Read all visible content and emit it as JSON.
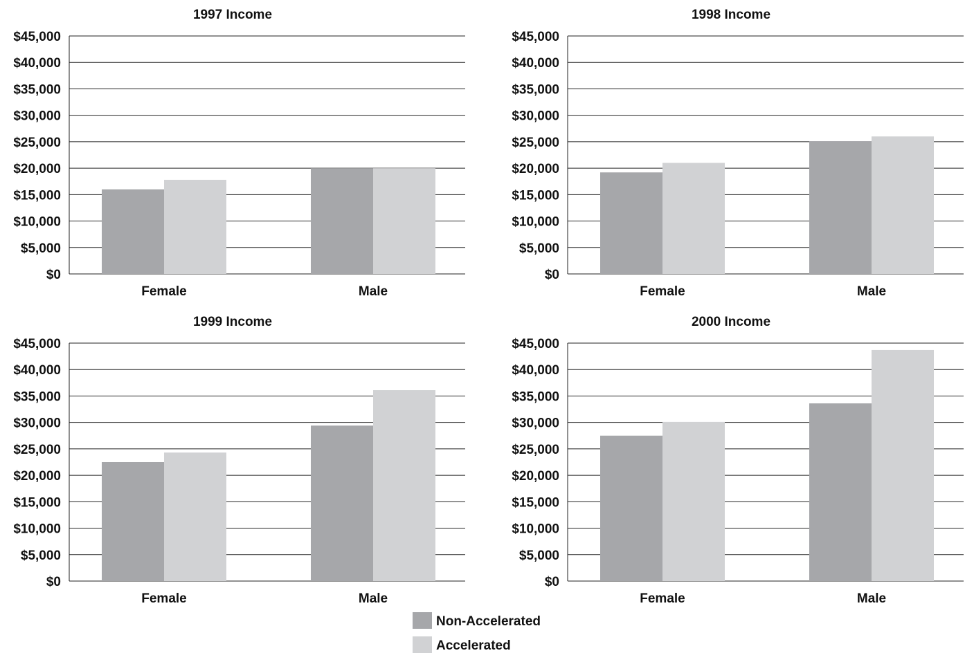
{
  "colors": {
    "non_accelerated": "#a6a7aa",
    "accelerated": "#d1d2d4",
    "gridline": "#222222",
    "text": "#111111"
  },
  "legend": {
    "items": [
      {
        "label": "Non-Accelerated",
        "color": "#a6a7aa"
      },
      {
        "label": "Accelerated",
        "color": "#d1d2d4"
      }
    ]
  },
  "chart_data": [
    {
      "type": "bar",
      "title": "1997 Income",
      "categories": [
        "Female",
        "Male"
      ],
      "series": [
        {
          "name": "Non-Accelerated",
          "values": [
            16000,
            20000
          ]
        },
        {
          "name": "Accelerated",
          "values": [
            17800,
            20000
          ]
        }
      ],
      "ylim": [
        0,
        45000
      ],
      "yticks": [
        "$0",
        "$5,000",
        "$10,000",
        "$15,000",
        "$20,000",
        "$25,000",
        "$30,000",
        "$35,000",
        "$40,000",
        "$45,000"
      ],
      "grid": true
    },
    {
      "type": "bar",
      "title": "1998 Income",
      "categories": [
        "Female",
        "Male"
      ],
      "series": [
        {
          "name": "Non-Accelerated",
          "values": [
            19200,
            25100
          ]
        },
        {
          "name": "Accelerated",
          "values": [
            21000,
            26000
          ]
        }
      ],
      "ylim": [
        0,
        45000
      ],
      "yticks": [
        "$0",
        "$5,000",
        "$10,000",
        "$15,000",
        "$20,000",
        "$25,000",
        "$30,000",
        "$35,000",
        "$40,000",
        "$45,000"
      ],
      "grid": true
    },
    {
      "type": "bar",
      "title": "1999 Income",
      "categories": [
        "Female",
        "Male"
      ],
      "series": [
        {
          "name": "Non-Accelerated",
          "values": [
            22500,
            29400
          ]
        },
        {
          "name": "Accelerated",
          "values": [
            24300,
            36100
          ]
        }
      ],
      "ylim": [
        0,
        45000
      ],
      "yticks": [
        "$0",
        "$5,000",
        "$10,000",
        "$15,000",
        "$20,000",
        "$25,000",
        "$30,000",
        "$35,000",
        "$40,000",
        "$45,000"
      ],
      "grid": true
    },
    {
      "type": "bar",
      "title": "2000 Income",
      "categories": [
        "Female",
        "Male"
      ],
      "series": [
        {
          "name": "Non-Accelerated",
          "values": [
            27500,
            33600
          ]
        },
        {
          "name": "Accelerated",
          "values": [
            30100,
            43700
          ]
        }
      ],
      "ylim": [
        0,
        45000
      ],
      "yticks": [
        "$0",
        "$5,000",
        "$10,000",
        "$15,000",
        "$20,000",
        "$25,000",
        "$30,000",
        "$35,000",
        "$40,000",
        "$45,000"
      ],
      "grid": true
    }
  ]
}
